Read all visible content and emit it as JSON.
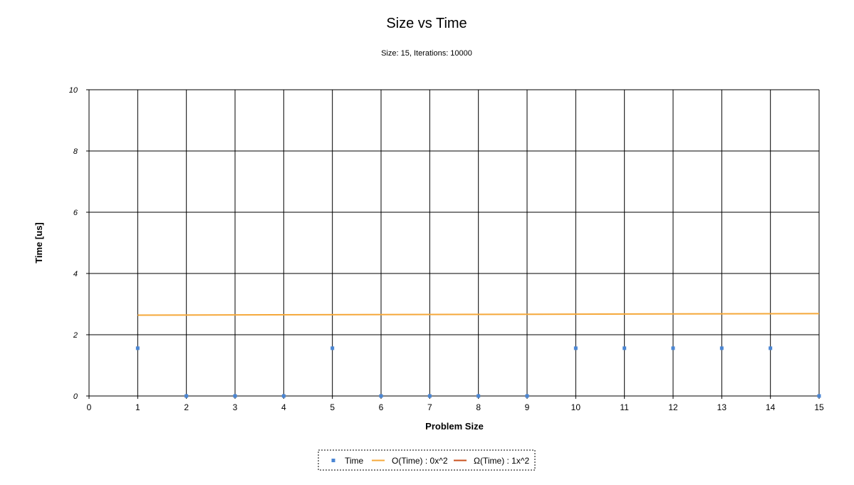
{
  "chart_data": {
    "type": "scatter",
    "title": "Size vs Time",
    "subtitle": "Size: 15, Iterations: 10000",
    "xlabel": "Problem Size",
    "ylabel": "Time [us]",
    "xlim": [
      0,
      15
    ],
    "ylim": [
      0,
      10
    ],
    "x_ticks": [
      "0",
      "1",
      "2",
      "3",
      "4",
      "5",
      "6",
      "7",
      "8",
      "9",
      "10",
      "11",
      "12",
      "13",
      "14",
      "15"
    ],
    "y_ticks": [
      "0",
      "2",
      "4",
      "6",
      "8",
      "10"
    ],
    "grid": true,
    "legend_position": "bottom-center",
    "series": [
      {
        "name": "Time",
        "kind": "points",
        "color": "#4a86d4",
        "x": [
          1,
          2,
          3,
          4,
          5,
          6,
          7,
          8,
          9,
          10,
          11,
          12,
          13,
          14,
          15
        ],
        "y": [
          1.56,
          0,
          0,
          0,
          1.56,
          0,
          0,
          0,
          0,
          1.56,
          1.56,
          1.56,
          1.56,
          1.56,
          0
        ]
      },
      {
        "name": "O(Time) : 0x^2",
        "kind": "line",
        "color": "#f5a83a",
        "x": [
          1,
          15
        ],
        "y": [
          2.64,
          2.69
        ]
      },
      {
        "name": "Ω(Time) : 1x^2",
        "kind": "line",
        "color": "#c8501e",
        "x": [],
        "y": []
      }
    ]
  }
}
